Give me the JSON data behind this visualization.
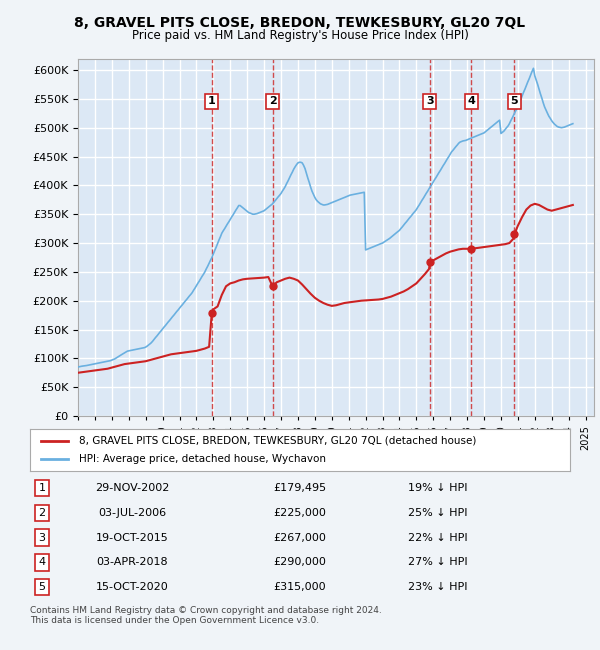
{
  "title": "8, GRAVEL PITS CLOSE, BREDON, TEWKESBURY, GL20 7QL",
  "subtitle": "Price paid vs. HM Land Registry's House Price Index (HPI)",
  "ylabel_ticks": [
    "£0",
    "£50K",
    "£100K",
    "£150K",
    "£200K",
    "£250K",
    "£300K",
    "£350K",
    "£400K",
    "£450K",
    "£500K",
    "£550K",
    "£600K"
  ],
  "ytick_values": [
    0,
    50000,
    100000,
    150000,
    200000,
    250000,
    300000,
    350000,
    400000,
    450000,
    500000,
    550000,
    600000
  ],
  "ylim": [
    0,
    620000
  ],
  "xlim_start": 1995.0,
  "xlim_end": 2025.5,
  "background_color": "#f0f4f8",
  "plot_bg_color": "#dce8f5",
  "grid_color": "#ffffff",
  "hpi_line_color": "#6ab0e0",
  "price_line_color": "#cc2222",
  "sale_marker_color": "#cc2222",
  "vline_color": "#cc2222",
  "vline_style": "--",
  "legend_box_color": "#ffffff",
  "legend_border_color": "#aaaaaa",
  "sale_dates_x": [
    2002.91,
    2006.5,
    2015.8,
    2018.25,
    2020.79
  ],
  "sale_labels": [
    "1",
    "2",
    "3",
    "4",
    "5"
  ],
  "sale_prices": [
    179495,
    225000,
    267000,
    290000,
    315000
  ],
  "table_rows": [
    [
      "1",
      "29-NOV-2002",
      "£179,495",
      "19% ↓ HPI"
    ],
    [
      "2",
      "03-JUL-2006",
      "£225,000",
      "25% ↓ HPI"
    ],
    [
      "3",
      "19-OCT-2015",
      "£267,000",
      "22% ↓ HPI"
    ],
    [
      "4",
      "03-APR-2018",
      "£290,000",
      "27% ↓ HPI"
    ],
    [
      "5",
      "15-OCT-2020",
      "£315,000",
      "23% ↓ HPI"
    ]
  ],
  "legend_label_price": "8, GRAVEL PITS CLOSE, BREDON, TEWKESBURY, GL20 7QL (detached house)",
  "legend_label_hpi": "HPI: Average price, detached house, Wychavon",
  "footnote": "Contains HM Land Registry data © Crown copyright and database right 2024.\nThis data is licensed under the Open Government Licence v3.0.",
  "hpi_years": [
    1995.0,
    1995.08,
    1995.17,
    1995.25,
    1995.33,
    1995.42,
    1995.5,
    1995.58,
    1995.67,
    1995.75,
    1995.83,
    1995.92,
    1996.0,
    1996.08,
    1996.17,
    1996.25,
    1996.33,
    1996.42,
    1996.5,
    1996.58,
    1996.67,
    1996.75,
    1996.83,
    1996.92,
    1997.0,
    1997.08,
    1997.17,
    1997.25,
    1997.33,
    1997.42,
    1997.5,
    1997.58,
    1997.67,
    1997.75,
    1997.83,
    1997.92,
    1998.0,
    1998.08,
    1998.17,
    1998.25,
    1998.33,
    1998.42,
    1998.5,
    1998.58,
    1998.67,
    1998.75,
    1998.83,
    1998.92,
    1999.0,
    1999.08,
    1999.17,
    1999.25,
    1999.33,
    1999.42,
    1999.5,
    1999.58,
    1999.67,
    1999.75,
    1999.83,
    1999.92,
    2000.0,
    2000.08,
    2000.17,
    2000.25,
    2000.33,
    2000.42,
    2000.5,
    2000.58,
    2000.67,
    2000.75,
    2000.83,
    2000.92,
    2001.0,
    2001.08,
    2001.17,
    2001.25,
    2001.33,
    2001.42,
    2001.5,
    2001.58,
    2001.67,
    2001.75,
    2001.83,
    2001.92,
    2002.0,
    2002.08,
    2002.17,
    2002.25,
    2002.33,
    2002.42,
    2002.5,
    2002.58,
    2002.67,
    2002.75,
    2002.83,
    2002.92,
    2003.0,
    2003.08,
    2003.17,
    2003.25,
    2003.33,
    2003.42,
    2003.5,
    2003.58,
    2003.67,
    2003.75,
    2003.83,
    2003.92,
    2004.0,
    2004.08,
    2004.17,
    2004.25,
    2004.33,
    2004.42,
    2004.5,
    2004.58,
    2004.67,
    2004.75,
    2004.83,
    2004.92,
    2005.0,
    2005.08,
    2005.17,
    2005.25,
    2005.33,
    2005.42,
    2005.5,
    2005.58,
    2005.67,
    2005.75,
    2005.83,
    2005.92,
    2006.0,
    2006.08,
    2006.17,
    2006.25,
    2006.33,
    2006.42,
    2006.5,
    2006.58,
    2006.67,
    2006.75,
    2006.83,
    2006.92,
    2007.0,
    2007.08,
    2007.17,
    2007.25,
    2007.33,
    2007.42,
    2007.5,
    2007.58,
    2007.67,
    2007.75,
    2007.83,
    2007.92,
    2008.0,
    2008.08,
    2008.17,
    2008.25,
    2008.33,
    2008.42,
    2008.5,
    2008.58,
    2008.67,
    2008.75,
    2008.83,
    2008.92,
    2009.0,
    2009.08,
    2009.17,
    2009.25,
    2009.33,
    2009.42,
    2009.5,
    2009.58,
    2009.67,
    2009.75,
    2009.83,
    2009.92,
    2010.0,
    2010.08,
    2010.17,
    2010.25,
    2010.33,
    2010.42,
    2010.5,
    2010.58,
    2010.67,
    2010.75,
    2010.83,
    2010.92,
    2011.0,
    2011.08,
    2011.17,
    2011.25,
    2011.33,
    2011.42,
    2011.5,
    2011.58,
    2011.67,
    2011.75,
    2011.83,
    2011.92,
    2012.0,
    2012.08,
    2012.17,
    2012.25,
    2012.33,
    2012.42,
    2012.5,
    2012.58,
    2012.67,
    2012.75,
    2012.83,
    2012.92,
    2013.0,
    2013.08,
    2013.17,
    2013.25,
    2013.33,
    2013.42,
    2013.5,
    2013.58,
    2013.67,
    2013.75,
    2013.83,
    2013.92,
    2014.0,
    2014.08,
    2014.17,
    2014.25,
    2014.33,
    2014.42,
    2014.5,
    2014.58,
    2014.67,
    2014.75,
    2014.83,
    2014.92,
    2015.0,
    2015.08,
    2015.17,
    2015.25,
    2015.33,
    2015.42,
    2015.5,
    2015.58,
    2015.67,
    2015.75,
    2015.83,
    2015.92,
    2016.0,
    2016.08,
    2016.17,
    2016.25,
    2016.33,
    2016.42,
    2016.5,
    2016.58,
    2016.67,
    2016.75,
    2016.83,
    2016.92,
    2017.0,
    2017.08,
    2017.17,
    2017.25,
    2017.33,
    2017.42,
    2017.5,
    2017.58,
    2017.67,
    2017.75,
    2017.83,
    2017.92,
    2018.0,
    2018.08,
    2018.17,
    2018.25,
    2018.33,
    2018.42,
    2018.5,
    2018.58,
    2018.67,
    2018.75,
    2018.83,
    2018.92,
    2019.0,
    2019.08,
    2019.17,
    2019.25,
    2019.33,
    2019.42,
    2019.5,
    2019.58,
    2019.67,
    2019.75,
    2019.83,
    2019.92,
    2020.0,
    2020.08,
    2020.17,
    2020.25,
    2020.33,
    2020.42,
    2020.5,
    2020.58,
    2020.67,
    2020.75,
    2020.83,
    2020.92,
    2021.0,
    2021.08,
    2021.17,
    2021.25,
    2021.33,
    2021.42,
    2021.5,
    2021.58,
    2021.67,
    2021.75,
    2021.83,
    2021.92,
    2022.0,
    2022.08,
    2022.17,
    2022.25,
    2022.33,
    2022.42,
    2022.5,
    2022.58,
    2022.67,
    2022.75,
    2022.83,
    2022.92,
    2023.0,
    2023.08,
    2023.17,
    2023.25,
    2023.33,
    2023.42,
    2023.5,
    2023.58,
    2023.67,
    2023.75,
    2023.83,
    2023.92,
    2024.0,
    2024.08,
    2024.17,
    2024.25
  ],
  "hpi_values": [
    85000,
    85500,
    86000,
    86500,
    86800,
    87000,
    87500,
    88000,
    88500,
    89000,
    89500,
    90000,
    90500,
    91000,
    91500,
    92000,
    92500,
    93000,
    93500,
    94000,
    94500,
    95000,
    95500,
    96000,
    97000,
    98000,
    99000,
    100500,
    102000,
    103500,
    105000,
    106500,
    108000,
    109500,
    111000,
    112500,
    113000,
    113500,
    114000,
    114500,
    115000,
    115500,
    116000,
    116500,
    117000,
    117500,
    118000,
    118500,
    119500,
    121000,
    123000,
    125000,
    127000,
    130000,
    133000,
    136000,
    139000,
    142000,
    145000,
    148000,
    151000,
    154000,
    157000,
    160000,
    163000,
    166000,
    169000,
    172000,
    175000,
    178000,
    181000,
    184000,
    187000,
    190000,
    193000,
    196000,
    199000,
    202000,
    205000,
    208000,
    211000,
    214000,
    218000,
    222000,
    226000,
    230000,
    234000,
    238000,
    242000,
    246000,
    250000,
    255000,
    260000,
    265000,
    270000,
    275000,
    281000,
    287000,
    293000,
    299000,
    305000,
    311000,
    317000,
    321000,
    325000,
    329000,
    333000,
    337000,
    341000,
    345000,
    349000,
    353000,
    357000,
    361000,
    365000,
    365000,
    363000,
    361000,
    359000,
    357000,
    355000,
    353000,
    352000,
    351000,
    350000,
    350000,
    350500,
    351000,
    352000,
    353000,
    354000,
    355000,
    356000,
    358000,
    360000,
    362000,
    364000,
    366000,
    368000,
    371000,
    374000,
    377000,
    380000,
    383000,
    386000,
    390000,
    394000,
    398000,
    403000,
    408000,
    413000,
    418000,
    423000,
    428000,
    432000,
    436000,
    439000,
    440000,
    440000,
    439000,
    435000,
    429000,
    421000,
    413000,
    405000,
    397000,
    390000,
    384000,
    379000,
    375000,
    372000,
    370000,
    368000,
    367000,
    366000,
    366000,
    366500,
    367000,
    368000,
    369000,
    370000,
    371000,
    372000,
    373000,
    374000,
    375000,
    376000,
    377000,
    378000,
    379000,
    380000,
    381000,
    382000,
    383000,
    383500,
    384000,
    384500,
    385000,
    385500,
    386000,
    386500,
    387000,
    387500,
    388000,
    288000,
    289000,
    290000,
    291000,
    292000,
    293000,
    294000,
    295000,
    296000,
    297000,
    298000,
    299000,
    300000,
    301500,
    303000,
    304500,
    306000,
    308000,
    310000,
    312000,
    314000,
    316000,
    318000,
    320000,
    322000,
    325000,
    328000,
    331000,
    334000,
    337000,
    340000,
    343000,
    346000,
    349000,
    352000,
    355000,
    358000,
    362000,
    366000,
    370000,
    374000,
    378000,
    382000,
    386000,
    390000,
    394000,
    398000,
    402000,
    406000,
    410000,
    414000,
    418000,
    422000,
    426000,
    430000,
    434000,
    438000,
    442000,
    446000,
    450000,
    454000,
    458000,
    461000,
    464000,
    467000,
    470000,
    473000,
    475000,
    476000,
    477000,
    477500,
    478000,
    479000,
    480000,
    481000,
    482000,
    483000,
    484000,
    485000,
    486000,
    487000,
    488000,
    489000,
    490000,
    491000,
    493000,
    495000,
    497000,
    499000,
    501000,
    503000,
    505000,
    507000,
    509000,
    511000,
    513000,
    490000,
    492000,
    494000,
    497000,
    500000,
    503000,
    507000,
    512000,
    517000,
    522000,
    527000,
    532000,
    537000,
    543000,
    549000,
    555000,
    561000,
    567000,
    573000,
    579000,
    585000,
    591000,
    597000,
    603000,
    590000,
    583000,
    575000,
    567000,
    559000,
    551000,
    543000,
    536000,
    530000,
    525000,
    520000,
    516000,
    512000,
    509000,
    506000,
    504000,
    502000,
    501000,
    500500,
    500000,
    500500,
    501000,
    502000,
    503000,
    504000,
    505000,
    506000,
    507000
  ],
  "price_years": [
    1995.0,
    1995.25,
    1995.5,
    1995.75,
    1996.0,
    1996.25,
    1996.5,
    1996.75,
    1997.0,
    1997.25,
    1997.5,
    1997.75,
    1998.0,
    1998.25,
    1998.5,
    1998.75,
    1999.0,
    1999.25,
    1999.5,
    1999.75,
    2000.0,
    2000.25,
    2000.5,
    2000.75,
    2001.0,
    2001.25,
    2001.5,
    2001.75,
    2002.0,
    2002.25,
    2002.5,
    2002.75,
    2002.91,
    2003.0,
    2003.25,
    2003.5,
    2003.75,
    2004.0,
    2004.25,
    2004.5,
    2004.75,
    2005.0,
    2005.25,
    2005.5,
    2005.75,
    2006.0,
    2006.25,
    2006.5,
    2006.5,
    2006.75,
    2007.0,
    2007.25,
    2007.5,
    2007.75,
    2008.0,
    2008.25,
    2008.5,
    2008.75,
    2009.0,
    2009.25,
    2009.5,
    2009.75,
    2010.0,
    2010.25,
    2010.5,
    2010.75,
    2011.0,
    2011.25,
    2011.5,
    2011.75,
    2012.0,
    2012.25,
    2012.5,
    2012.75,
    2013.0,
    2013.25,
    2013.5,
    2013.75,
    2014.0,
    2014.25,
    2014.5,
    2014.75,
    2015.0,
    2015.25,
    2015.5,
    2015.75,
    2015.8,
    2016.0,
    2016.25,
    2016.5,
    2016.75,
    2017.0,
    2017.25,
    2017.5,
    2017.75,
    2018.0,
    2018.25,
    2018.5,
    2018.75,
    2019.0,
    2019.25,
    2019.5,
    2019.75,
    2020.0,
    2020.25,
    2020.5,
    2020.75,
    2020.79,
    2021.0,
    2021.25,
    2021.5,
    2021.75,
    2022.0,
    2022.25,
    2022.5,
    2022.75,
    2023.0,
    2023.25,
    2023.5,
    2023.75,
    2024.0,
    2024.25
  ],
  "price_values": [
    75000,
    76000,
    77000,
    78000,
    79000,
    80000,
    81000,
    82000,
    84000,
    86000,
    88000,
    90000,
    91000,
    92000,
    93000,
    94000,
    95000,
    97000,
    99000,
    101000,
    103000,
    105000,
    107000,
    108000,
    109000,
    110000,
    111000,
    112000,
    113000,
    115000,
    117000,
    120000,
    179495,
    185000,
    190000,
    210000,
    225000,
    230000,
    232000,
    235000,
    237000,
    238000,
    238500,
    239000,
    239500,
    240000,
    241000,
    225000,
    225000,
    232000,
    235000,
    238000,
    240000,
    238000,
    235000,
    228000,
    220000,
    212000,
    205000,
    200000,
    196000,
    193000,
    191000,
    192000,
    194000,
    196000,
    197000,
    198000,
    199000,
    200000,
    200500,
    201000,
    201500,
    202000,
    203000,
    205000,
    207000,
    210000,
    213000,
    216000,
    220000,
    225000,
    230000,
    238000,
    246000,
    255000,
    267000,
    270000,
    274000,
    278000,
    282000,
    285000,
    287000,
    289000,
    290000,
    290000,
    290000,
    291000,
    292000,
    293000,
    294000,
    295000,
    296000,
    297000,
    298000,
    300000,
    308000,
    315000,
    330000,
    345000,
    358000,
    365000,
    368000,
    366000,
    362000,
    358000,
    356000,
    358000,
    360000,
    362000,
    364000,
    366000
  ]
}
